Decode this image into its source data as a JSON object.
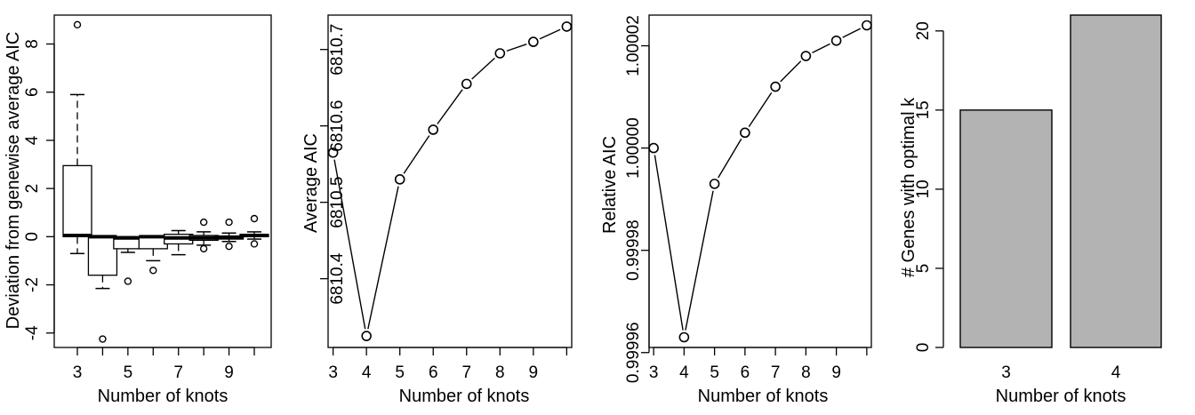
{
  "chart_data": [
    {
      "type": "box",
      "xlabel": "Number of knots",
      "ylabel": "Deviation from genewise average AIC",
      "ylim": [
        -4.6,
        9.2
      ],
      "yticks": [
        -4,
        -2,
        0,
        2,
        4,
        6,
        8
      ],
      "xticks": [
        3,
        5,
        7,
        9
      ],
      "categories": [
        3,
        4,
        5,
        6,
        7,
        8,
        9,
        10
      ],
      "boxes": [
        {
          "x": 3,
          "whislo": -0.7,
          "q1": 0.0,
          "med": 0.05,
          "q3": 2.95,
          "whishi": 5.9,
          "fliers": [
            8.8
          ]
        },
        {
          "x": 4,
          "whislo": -2.15,
          "q1": -1.6,
          "med": 0.0,
          "q3": 0.0,
          "whishi": 0.0,
          "fliers": [
            -4.25
          ]
        },
        {
          "x": 5,
          "whislo": -0.65,
          "q1": -0.5,
          "med": -0.05,
          "q3": 0.0,
          "whishi": 0.0,
          "fliers": [
            -1.85
          ]
        },
        {
          "x": 6,
          "whislo": -1.0,
          "q1": -0.5,
          "med": 0.0,
          "q3": 0.0,
          "whishi": 0.0,
          "fliers": [
            -1.4
          ]
        },
        {
          "x": 7,
          "whislo": -0.75,
          "q1": -0.3,
          "med": -0.05,
          "q3": 0.1,
          "whishi": 0.25,
          "fliers": []
        },
        {
          "x": 8,
          "whislo": -0.35,
          "q1": -0.15,
          "med": -0.05,
          "q3": 0.05,
          "whishi": 0.2,
          "fliers": [
            0.6,
            -0.5
          ]
        },
        {
          "x": 9,
          "whislo": -0.2,
          "q1": -0.1,
          "med": -0.02,
          "q3": 0.02,
          "whishi": 0.15,
          "fliers": [
            0.6,
            -0.4
          ]
        },
        {
          "x": 10,
          "whislo": -0.1,
          "q1": 0.0,
          "med": 0.05,
          "q3": 0.1,
          "whishi": 0.2,
          "fliers": [
            0.75,
            -0.3
          ]
        }
      ]
    },
    {
      "type": "line",
      "xlabel": "Number of knots",
      "ylabel": "Average AIC",
      "x": [
        3,
        4,
        5,
        6,
        7,
        8,
        9,
        10
      ],
      "y": [
        6810.565,
        6810.325,
        6810.53,
        6810.595,
        6810.655,
        6810.695,
        6810.71,
        6810.73
      ],
      "xlim": [
        2.85,
        10.15
      ],
      "ylim": [
        6810.31,
        6810.745
      ],
      "yticks": [
        "6810.4",
        "6810.5",
        "6810.6",
        "6810.7"
      ],
      "ytick_values": [
        6810.4,
        6810.5,
        6810.6,
        6810.7
      ],
      "xticks": [
        3,
        4,
        5,
        6,
        7,
        8,
        9
      ]
    },
    {
      "type": "line",
      "xlabel": "Number of knots",
      "ylabel": "Relative AIC",
      "x": [
        3,
        4,
        5,
        6,
        7,
        8,
        9,
        10
      ],
      "y": [
        1.0,
        0.999963,
        0.999993,
        1.000003,
        1.000012,
        1.000018,
        1.000021,
        1.000024
      ],
      "xlim": [
        2.85,
        10.15
      ],
      "ylim": [
        0.999961,
        1.000026
      ],
      "yticks": [
        "0.99996",
        "0.99998",
        "1.00000",
        "1.00002"
      ],
      "ytick_values": [
        0.99996,
        0.99998,
        1.0,
        1.00002
      ],
      "xticks": [
        3,
        4,
        5,
        6,
        7,
        8,
        9
      ]
    },
    {
      "type": "bar",
      "xlabel": "Number of knots",
      "ylabel": "# Genes with optimal k",
      "categories": [
        "3",
        "4"
      ],
      "values": [
        15,
        21
      ],
      "ylim": [
        0,
        21
      ],
      "yticks": [
        0,
        5,
        10,
        15,
        20
      ],
      "bar_color": "#b3b3b3"
    }
  ]
}
